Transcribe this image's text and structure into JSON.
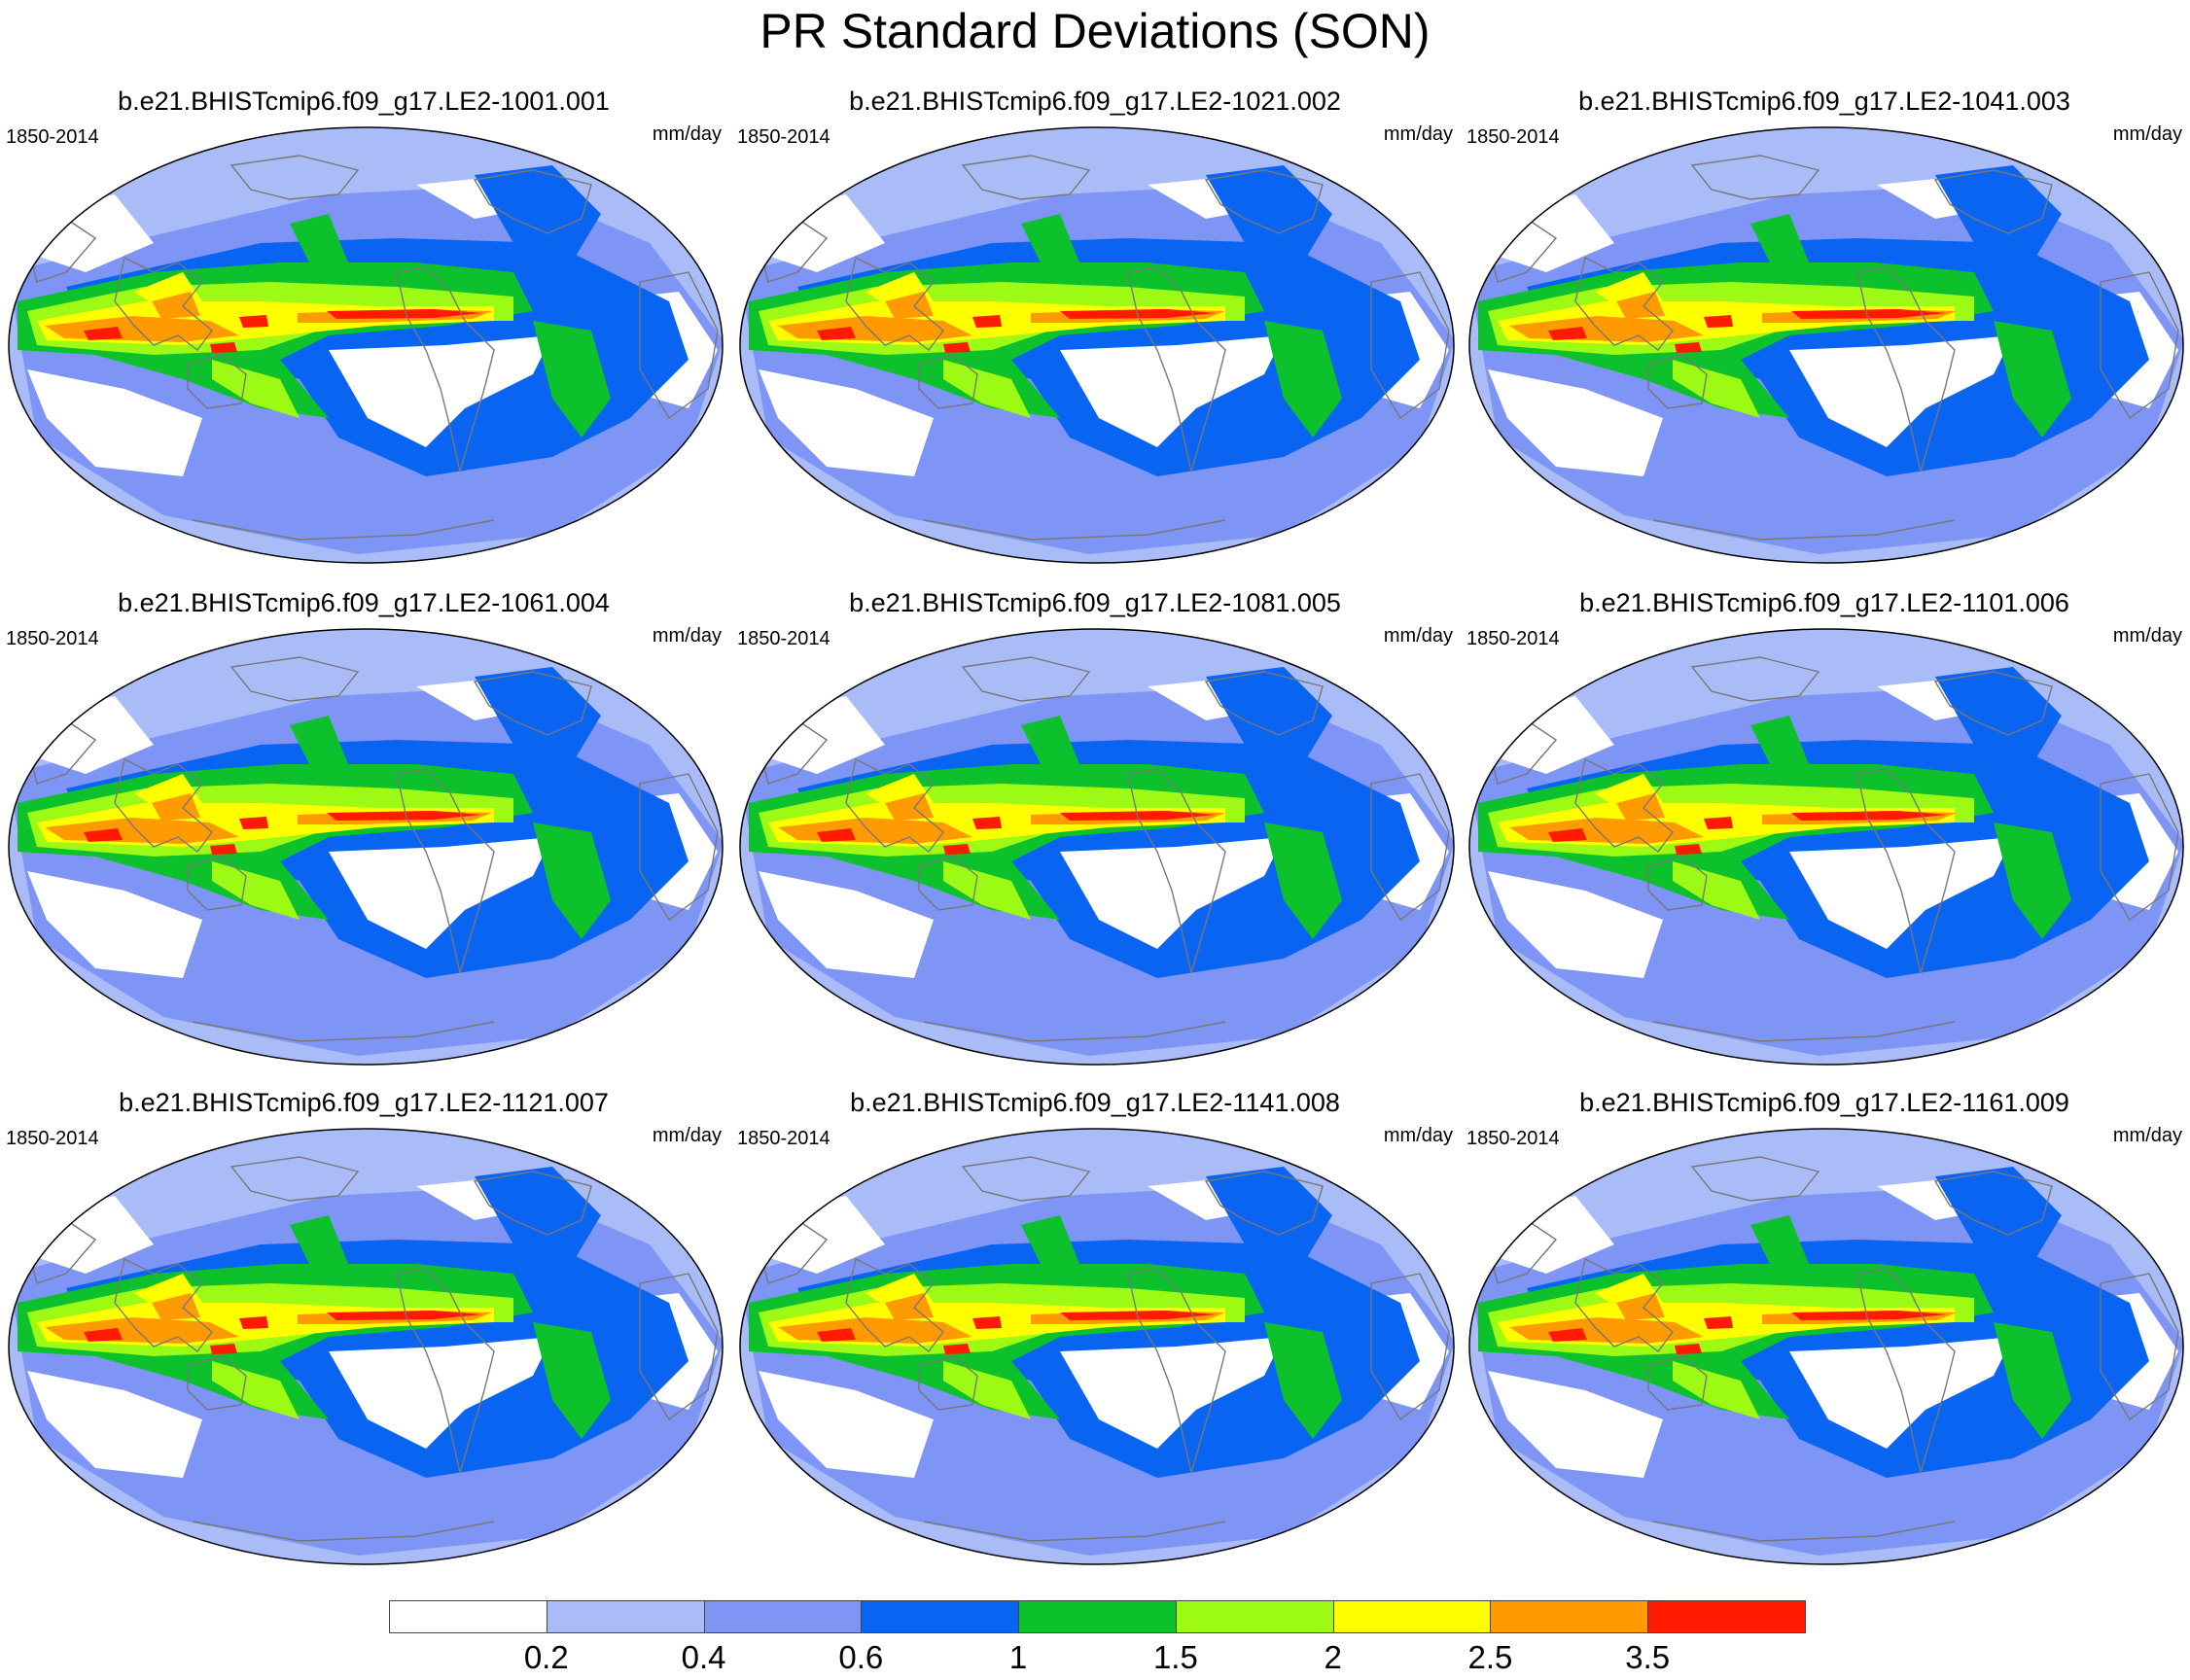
{
  "figure": {
    "title": "PR Standard Deviations (SON)"
  },
  "panels": [
    {
      "title": "b.e21.BHISTcmip6.f09_g17.LE2-1001.001",
      "left_label": "1850-2014",
      "right_label": "mm/day"
    },
    {
      "title": "b.e21.BHISTcmip6.f09_g17.LE2-1021.002",
      "left_label": "1850-2014",
      "right_label": "mm/day"
    },
    {
      "title": "b.e21.BHISTcmip6.f09_g17.LE2-1041.003",
      "left_label": "1850-2014",
      "right_label": "mm/day"
    },
    {
      "title": "b.e21.BHISTcmip6.f09_g17.LE2-1061.004",
      "left_label": "1850-2014",
      "right_label": "mm/day"
    },
    {
      "title": "b.e21.BHISTcmip6.f09_g17.LE2-1081.005",
      "left_label": "1850-2014",
      "right_label": "mm/day"
    },
    {
      "title": "b.e21.BHISTcmip6.f09_g17.LE2-1101.006",
      "left_label": "1850-2014",
      "right_label": "mm/day"
    },
    {
      "title": "b.e21.BHISTcmip6.f09_g17.LE2-1121.007",
      "left_label": "1850-2014",
      "right_label": "mm/day"
    },
    {
      "title": "b.e21.BHISTcmip6.f09_g17.LE2-1141.008",
      "left_label": "1850-2014",
      "right_label": "mm/day"
    },
    {
      "title": "b.e21.BHISTcmip6.f09_g17.LE2-1161.009",
      "left_label": "1850-2014",
      "right_label": "mm/day"
    }
  ],
  "colorbar": {
    "levels": [
      "0.2",
      "0.4",
      "0.6",
      "1",
      "1.5",
      "2",
      "2.5",
      "3.5"
    ],
    "colors": [
      "#ffffff",
      "#a9bcf7",
      "#7f95f6",
      "#0a64f2",
      "#0cc12c",
      "#9cfa14",
      "#ffff00",
      "#ff9b00",
      "#ff1a00"
    ]
  }
}
